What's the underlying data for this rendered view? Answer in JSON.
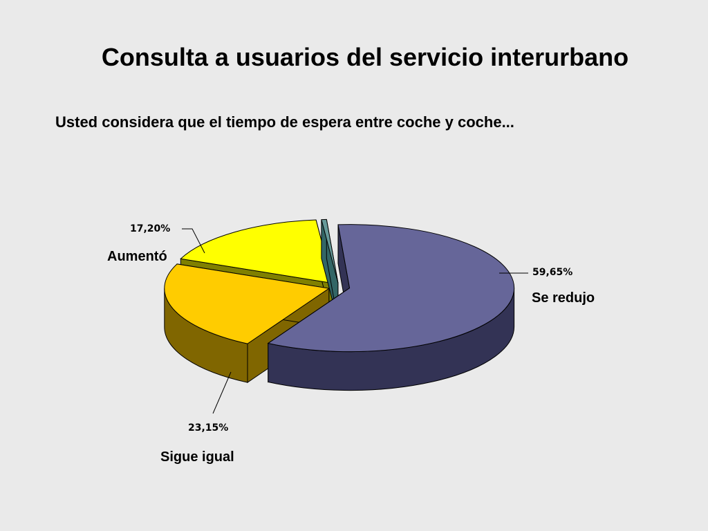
{
  "slide": {
    "title": "Consulta a usuarios del servicio interurbano",
    "subtitle": "Usted considera que el tiempo de espera entre coche y coche..."
  },
  "chart_data": {
    "type": "pie",
    "style": "3d-exploded",
    "slices": [
      {
        "label": "Se redujo",
        "value": 59.65,
        "value_label": "59,65%",
        "color": "#666699",
        "side_color": "#333355"
      },
      {
        "label": "Sigue igual",
        "value": 23.15,
        "value_label": "23,15%",
        "color": "#ffcc00",
        "side_color": "#806600"
      },
      {
        "label": "Aumentó",
        "value": 17.2,
        "value_label": "17,20%",
        "color": "#ffff00",
        "side_color": "#808000"
      },
      {
        "label": "",
        "value": 0.5,
        "value_label": "",
        "color": "#669999",
        "side_color": "#336666"
      }
    ]
  }
}
